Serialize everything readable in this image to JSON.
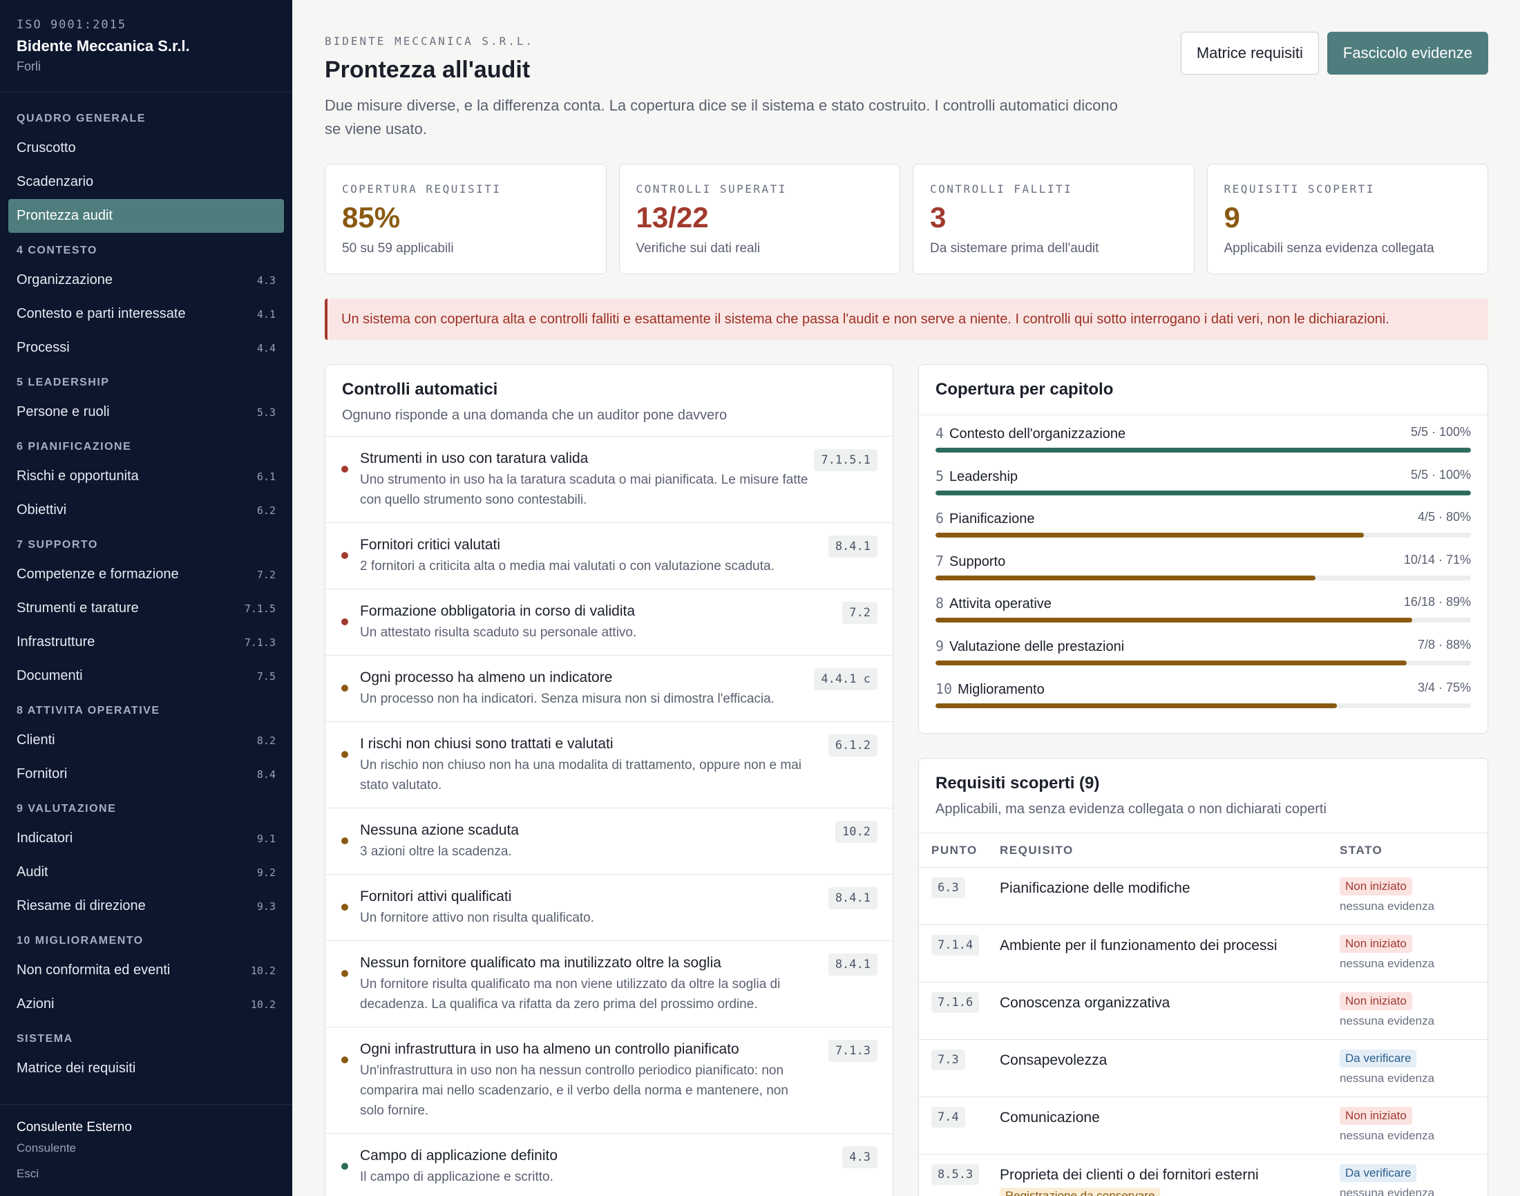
{
  "sidebar": {
    "iso": "ISO 9001:2015",
    "company": "Bidente Meccanica S.r.l.",
    "city": "Forli",
    "sections": [
      {
        "title": "QUADRO GENERALE",
        "items": [
          {
            "label": "Cruscotto",
            "code": ""
          },
          {
            "label": "Scadenzario",
            "code": ""
          },
          {
            "label": "Prontezza audit",
            "code": "",
            "active": true
          }
        ]
      },
      {
        "title": "4 CONTESTO",
        "items": [
          {
            "label": "Organizzazione",
            "code": "4.3"
          },
          {
            "label": "Contesto e parti interessate",
            "code": "4.1"
          },
          {
            "label": "Processi",
            "code": "4.4"
          }
        ]
      },
      {
        "title": "5 LEADERSHIP",
        "items": [
          {
            "label": "Persone e ruoli",
            "code": "5.3"
          }
        ]
      },
      {
        "title": "6 PIANIFICAZIONE",
        "items": [
          {
            "label": "Rischi e opportunita",
            "code": "6.1"
          },
          {
            "label": "Obiettivi",
            "code": "6.2"
          }
        ]
      },
      {
        "title": "7 SUPPORTO",
        "items": [
          {
            "label": "Competenze e formazione",
            "code": "7.2"
          },
          {
            "label": "Strumenti e tarature",
            "code": "7.1.5"
          },
          {
            "label": "Infrastrutture",
            "code": "7.1.3"
          },
          {
            "label": "Documenti",
            "code": "7.5"
          }
        ]
      },
      {
        "title": "8 ATTIVITA OPERATIVE",
        "items": [
          {
            "label": "Clienti",
            "code": "8.2"
          },
          {
            "label": "Fornitori",
            "code": "8.4"
          }
        ]
      },
      {
        "title": "9 VALUTAZIONE",
        "items": [
          {
            "label": "Indicatori",
            "code": "9.1"
          },
          {
            "label": "Audit",
            "code": "9.2"
          },
          {
            "label": "Riesame di direzione",
            "code": "9.3"
          }
        ]
      },
      {
        "title": "10 MIGLIORAMENTO",
        "items": [
          {
            "label": "Non conformita ed eventi",
            "code": "10.2"
          },
          {
            "label": "Azioni",
            "code": "10.2"
          }
        ]
      },
      {
        "title": "SISTEMA",
        "items": [
          {
            "label": "Matrice dei requisiti",
            "code": ""
          }
        ]
      }
    ],
    "footer": {
      "user": "Consulente Esterno",
      "role": "Consulente",
      "logout": "Esci"
    }
  },
  "header": {
    "eyebrow": "BIDENTE MECCANICA S.R.L.",
    "title": "Prontezza all'audit",
    "description": "Due misure diverse, e la differenza conta. La copertura dice se il sistema e stato costruito. I controlli automatici dicono se viene usato.",
    "btn_matrix": "Matrice requisiti",
    "btn_evidence": "Fascicolo evidenze"
  },
  "kpis": [
    {
      "label": "COPERTURA REQUISITI",
      "value": "85%",
      "sub": "50 su 59 applicabili",
      "color": "#8a5a12"
    },
    {
      "label": "CONTROLLI SUPERATI",
      "value": "13/22",
      "sub": "Verifiche sui dati reali",
      "color": "#a13a2e"
    },
    {
      "label": "CONTROLLI FALLITI",
      "value": "3",
      "sub": "Da sistemare prima dell'audit",
      "color": "#a13a2e"
    },
    {
      "label": "REQUISITI SCOPERTI",
      "value": "9",
      "sub": "Applicabili senza evidenza collegata",
      "color": "#8a5a12"
    }
  ],
  "alert": "Un sistema con copertura alta e controlli falliti e esattamente il sistema che passa l'audit e non serve a niente. I controlli qui sotto interrogano i dati veri, non le dichiarazioni.",
  "controls": {
    "title": "Controlli automatici",
    "subtitle": "Ognuno risponde a una domanda che un auditor pone davvero",
    "items": [
      {
        "title": "Strumenti in uso con taratura valida",
        "desc": "Uno strumento in uso ha la taratura scaduta o mai pianificata. Le misure fatte con quello strumento sono contestabili.",
        "code": "7.1.5.1",
        "status": "fail"
      },
      {
        "title": "Fornitori critici valutati",
        "desc": "2 fornitori a criticita alta o media mai valutati o con valutazione scaduta.",
        "code": "8.4.1",
        "status": "fail"
      },
      {
        "title": "Formazione obbligatoria in corso di validita",
        "desc": "Un attestato risulta scaduto su personale attivo.",
        "code": "7.2",
        "status": "fail"
      },
      {
        "title": "Ogni processo ha almeno un indicatore",
        "desc": "Un processo non ha indicatori. Senza misura non si dimostra l'efficacia.",
        "code": "4.4.1 c",
        "status": "warn"
      },
      {
        "title": "I rischi non chiusi sono trattati e valutati",
        "desc": "Un rischio non chiuso non ha una modalita di trattamento, oppure non e mai stato valutato.",
        "code": "6.1.2",
        "status": "warn"
      },
      {
        "title": "Nessuna azione scaduta",
        "desc": "3 azioni oltre la scadenza.",
        "code": "10.2",
        "status": "warn"
      },
      {
        "title": "Fornitori attivi qualificati",
        "desc": "Un fornitore attivo non risulta qualificato.",
        "code": "8.4.1",
        "status": "warn"
      },
      {
        "title": "Nessun fornitore qualificato ma inutilizzato oltre la soglia",
        "desc": "Un fornitore risulta qualificato ma non viene utilizzato da oltre la soglia di decadenza. La qualifica va rifatta da zero prima del prossimo ordine.",
        "code": "8.4.1",
        "status": "warn"
      },
      {
        "title": "Ogni infrastruttura in uso ha almeno un controllo pianificato",
        "desc": "Un'infrastruttura in uso non ha nessun controllo periodico pianificato: non comparira mai nello scadenzario, e il verbo della norma e mantenere, non solo fornire.",
        "code": "7.1.3",
        "status": "warn"
      },
      {
        "title": "Campo di applicazione definito",
        "desc": "Il campo di applicazione e scritto.",
        "code": "4.3",
        "status": "pass"
      }
    ]
  },
  "coverage": {
    "title": "Copertura per capitolo",
    "chapters": [
      {
        "num": "4",
        "name": "Contesto dell'organizzazione",
        "value": "5/5 · 100%",
        "pct": 100,
        "color": "#2e6b5c"
      },
      {
        "num": "5",
        "name": "Leadership",
        "value": "5/5 · 100%",
        "pct": 100,
        "color": "#2e6b5c"
      },
      {
        "num": "6",
        "name": "Pianificazione",
        "value": "4/5 · 80%",
        "pct": 80,
        "color": "#8a5a12"
      },
      {
        "num": "7",
        "name": "Supporto",
        "value": "10/14 · 71%",
        "pct": 71,
        "color": "#8a5a12"
      },
      {
        "num": "8",
        "name": "Attivita operative",
        "value": "16/18 · 89%",
        "pct": 89,
        "color": "#8a5a12"
      },
      {
        "num": "9",
        "name": "Valutazione delle prestazioni",
        "value": "7/8 · 88%",
        "pct": 88,
        "color": "#8a5a12"
      },
      {
        "num": "10",
        "name": "Miglioramento",
        "value": "3/4 · 75%",
        "pct": 75,
        "color": "#8a5a12"
      }
    ]
  },
  "uncovered": {
    "title": "Requisiti scoperti (9)",
    "subtitle": "Applicabili, ma senza evidenza collegata o non dichiarati coperti",
    "columns": [
      "PUNTO",
      "REQUISITO",
      "STATO"
    ],
    "rows": [
      {
        "punto": "6.3",
        "req": "Pianificazione delle modifiche",
        "stato": "Non iniziato",
        "kind": "red",
        "note": "nessuna evidenza",
        "tag": ""
      },
      {
        "punto": "7.1.4",
        "req": "Ambiente per il funzionamento dei processi",
        "stato": "Non iniziato",
        "kind": "red",
        "note": "nessuna evidenza",
        "tag": ""
      },
      {
        "punto": "7.1.6",
        "req": "Conoscenza organizzativa",
        "stato": "Non iniziato",
        "kind": "red",
        "note": "nessuna evidenza",
        "tag": ""
      },
      {
        "punto": "7.3",
        "req": "Consapevolezza",
        "stato": "Da verificare",
        "kind": "blue",
        "note": "nessuna evidenza",
        "tag": ""
      },
      {
        "punto": "7.4",
        "req": "Comunicazione",
        "stato": "Non iniziato",
        "kind": "red",
        "note": "nessuna evidenza",
        "tag": ""
      },
      {
        "punto": "8.5.3",
        "req": "Proprieta dei clienti o dei fornitori esterni",
        "stato": "Da verificare",
        "kind": "blue",
        "note": "nessuna evidenza",
        "tag": "Registrazione da conservare"
      }
    ]
  },
  "colors": {
    "fail": "#a13a2e",
    "warn": "#8a5a12",
    "pass": "#2e6b5c",
    "accent": "#4f7d7e"
  }
}
